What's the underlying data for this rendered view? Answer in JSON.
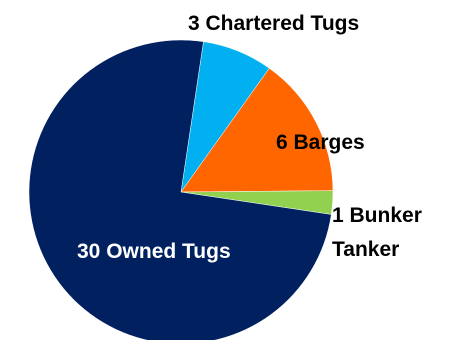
{
  "chart_data": {
    "type": "pie",
    "title": "",
    "slices": [
      {
        "label": "3 Chartered Tugs",
        "value": 3,
        "color": "#00B0F0"
      },
      {
        "label": "6 Barges",
        "value": 6,
        "color": "#FF6600"
      },
      {
        "label": "1 Bunker Tanker",
        "label_lines": [
          "1 Bunker",
          "Tanker"
        ],
        "value": 1,
        "color": "#92D050"
      },
      {
        "label": "30 Owned Tugs",
        "value": 30,
        "color": "#002060"
      }
    ],
    "label_colors": {
      "outside": "#000000",
      "inside_dark": "#ffffff",
      "inside_light": "#000000"
    }
  }
}
